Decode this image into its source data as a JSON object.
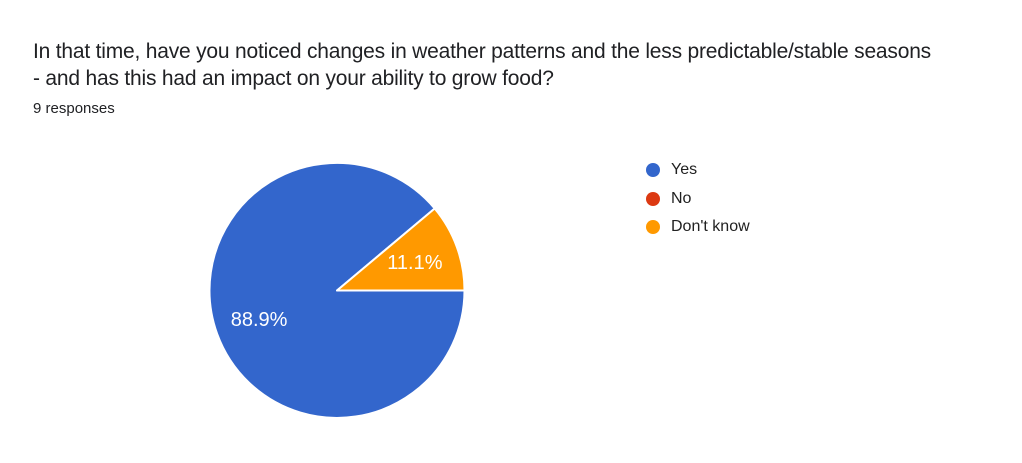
{
  "header": {
    "title": "In that time, have you noticed changes in weather patterns and the less predictable/stable seasons - and has this had an impact on your ability to grow food?",
    "title_line1": "In that time, have you noticed changes in weather patterns and the less predictable/stable seasons",
    "title_line2": "- and has this had an impact on your ability to grow food?",
    "responses_count": "9 responses"
  },
  "chart_data": {
    "type": "pie",
    "title": "In that time, have you noticed changes in weather patterns and the less predictable/stable seasons - and has this had an impact on your ability to grow food?",
    "categories": [
      "Yes",
      "No",
      "Don't know"
    ],
    "values": [
      8,
      0,
      1
    ],
    "percents": [
      88.9,
      0,
      11.1
    ],
    "percent_labels": [
      "88.9%",
      "",
      "11.1%"
    ],
    "colors": [
      "#3366CC",
      "#DC3912",
      "#FF9900"
    ],
    "slice_border_color": "#ffffff",
    "slice_label_color": "#ffffff",
    "legend_position": "right",
    "start_edge": "east-clockwise",
    "total_responses": 9
  }
}
